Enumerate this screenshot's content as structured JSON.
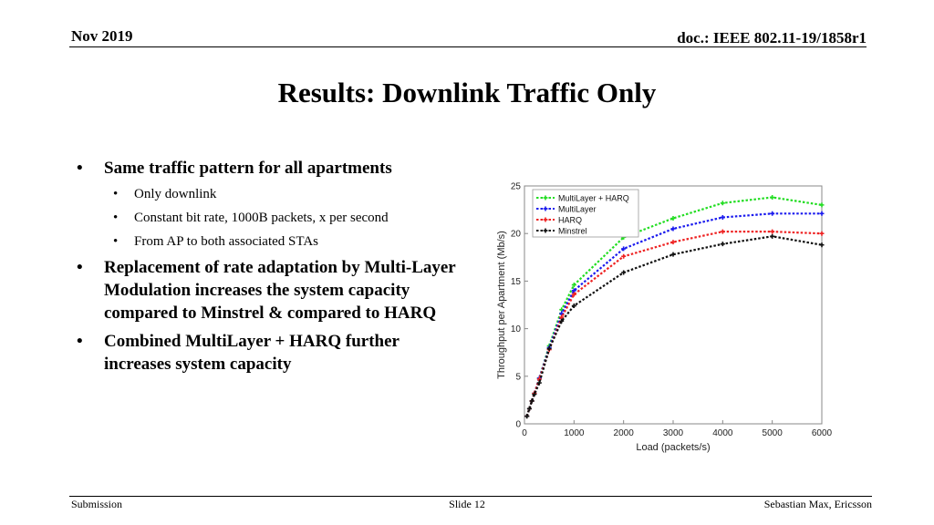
{
  "header": {
    "date": "Nov 2019",
    "doc": "doc.: IEEE 802.11-19/1858r1"
  },
  "title": "Results: Downlink Traffic Only",
  "bullets": [
    {
      "text": "Same traffic pattern for all apartments",
      "sub": [
        "Only downlink",
        "Constant bit rate, 1000B packets, x per second",
        "From AP to both associated STAs"
      ]
    },
    {
      "text": "Replacement of rate adaptation by Multi-Layer Modulation increases the system capacity compared to Minstrel & compared to HARQ"
    },
    {
      "text": "Combined MultiLayer + HARQ further increases system capacity"
    }
  ],
  "footer": {
    "left": "Submission",
    "center": "Slide 12",
    "right": "Sebastian Max, Ericsson"
  },
  "chart_data": {
    "type": "line",
    "title": "",
    "xlabel": "Load (packets/s)",
    "ylabel": "Throughput per Apartment (Mb/s)",
    "xlim": [
      0,
      6000
    ],
    "ylim": [
      0,
      25
    ],
    "xticks": [
      0,
      1000,
      2000,
      3000,
      4000,
      5000,
      6000
    ],
    "yticks": [
      0,
      5,
      10,
      15,
      20,
      25
    ],
    "legend_position": "top-left",
    "x": [
      50,
      100,
      150,
      200,
      300,
      500,
      750,
      1000,
      2000,
      3000,
      4000,
      5000,
      6000
    ],
    "series": [
      {
        "name": "MultiLayer + HARQ",
        "color": "#22dd22",
        "values": [
          0.8,
          1.6,
          2.4,
          3.2,
          4.8,
          8.2,
          12.0,
          14.6,
          19.6,
          21.6,
          23.2,
          23.8,
          23.0
        ]
      },
      {
        "name": "MultiLayer",
        "color": "#1a1aee",
        "values": [
          0.8,
          1.6,
          2.4,
          3.2,
          4.8,
          8.0,
          11.6,
          14.0,
          18.4,
          20.5,
          21.7,
          22.1,
          22.1
        ]
      },
      {
        "name": "HARQ",
        "color": "#ee2222",
        "values": [
          0.8,
          1.6,
          2.4,
          3.2,
          4.7,
          7.8,
          11.2,
          13.6,
          17.6,
          19.1,
          20.2,
          20.2,
          20.0
        ]
      },
      {
        "name": "Minstrel",
        "color": "#111111",
        "values": [
          0.8,
          1.6,
          2.4,
          3.1,
          4.3,
          7.9,
          10.8,
          12.4,
          15.9,
          17.8,
          18.9,
          19.7,
          18.8
        ]
      }
    ]
  }
}
